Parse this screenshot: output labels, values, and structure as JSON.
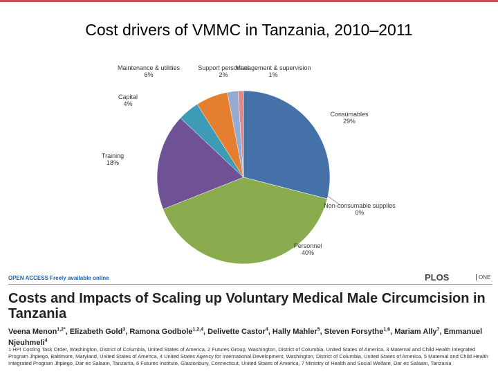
{
  "chart_data": {
    "type": "pie",
    "title": "Cost drivers of VMMC in Tanzania, 2010–2011",
    "categories": [
      "Consumables",
      "Non-consumable supplies",
      "Personnel",
      "Training",
      "Capital",
      "Maintenance & utilities",
      "Support personnel",
      "Management & supervision"
    ],
    "values": [
      29,
      0,
      40,
      18,
      4,
      6,
      2,
      1
    ],
    "value_labels": [
      "29%",
      "0%",
      "40%",
      "18%",
      "4%",
      "6%",
      "2%",
      "1%"
    ],
    "colors": [
      "#4472a8",
      "#c0504d",
      "#8aab4e",
      "#6f5296",
      "#3d9bb5",
      "#e67e30",
      "#96abd4",
      "#e08888"
    ]
  },
  "article": {
    "access": "OPEN ACCESS Freely available online",
    "journal": "PLOS",
    "journal_sub": "ONE",
    "title": "Costs and Impacts of Scaling up Voluntary Medical Male Circumcision in Tanzania",
    "authors": [
      {
        "name": "Veena Menon",
        "sup": "1,2*"
      },
      {
        "name": "Elizabeth Gold",
        "sup": "3"
      },
      {
        "name": "Ramona Godbole",
        "sup": "1,2,4"
      },
      {
        "name": "Delivette Castor",
        "sup": "4"
      },
      {
        "name": "Hally Mahler",
        "sup": "5"
      },
      {
        "name": "Steven Forsythe",
        "sup": "1,6"
      },
      {
        "name": "Mariam Ally",
        "sup": "7"
      },
      {
        "name": "Emmanuel Njeuhmeli",
        "sup": "4"
      }
    ],
    "affiliations": "1 HPI Costing Task Order, Washington, District of Columbia, United States of America, 2 Futures Group, Washington, District of Columbia, United States of America, 3 Maternal and Child Health Integrated Program Jhpiego, Baltimore, Maryland, United States of America, 4 United States Agency for International Development, Washington, District of Columbia, United States of America, 5 Maternal and Child Health Integrated Program Jhpiego, Dar es Salaam, Tanzania, 6 Futures Institute, Glastonbury, Connecticut, United States of America, 7 Ministry of Health and Social Welfare, Dar es Salaam, Tanzania"
  }
}
